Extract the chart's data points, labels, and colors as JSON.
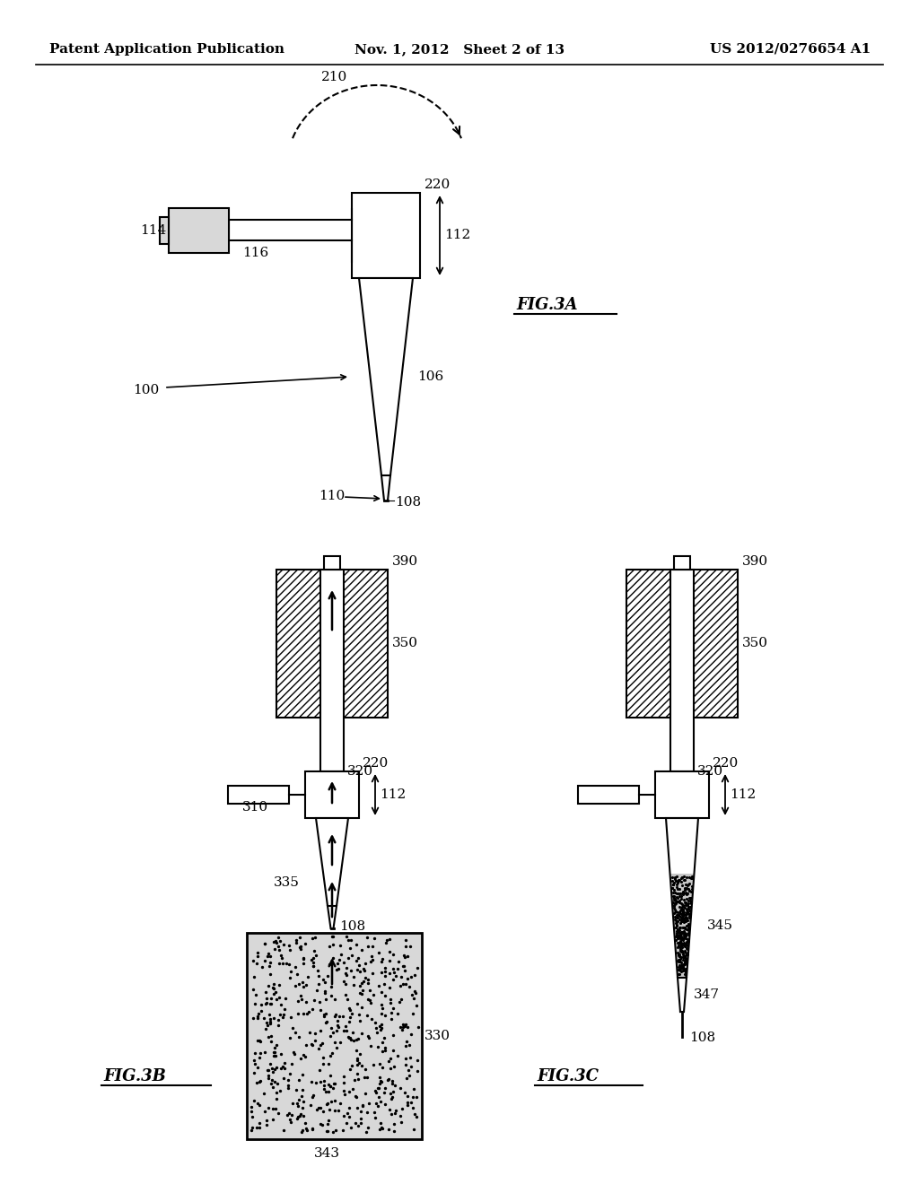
{
  "bg_color": "#ffffff",
  "header_left": "Patent Application Publication",
  "header_mid": "Nov. 1, 2012   Sheet 2 of 13",
  "header_right": "US 2012/0276654 A1",
  "fig3a_label": "FIG.3A",
  "fig3b_label": "FIG.3B",
  "fig3c_label": "FIG.3C",
  "line_color": "#000000",
  "font_size_header": 11,
  "font_size_label": 11,
  "font_size_fig": 13
}
